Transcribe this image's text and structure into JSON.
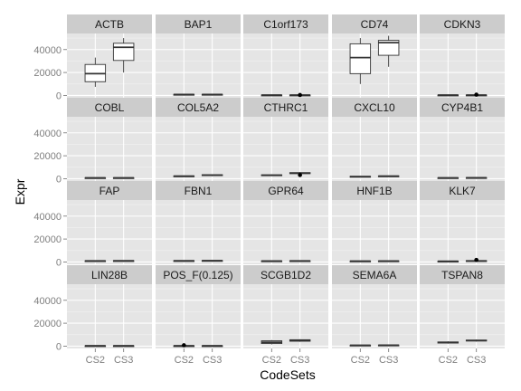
{
  "chart_data": {
    "type": "boxplot",
    "xlabel": "CodeSets",
    "ylabel": "Expr",
    "categories": [
      "CS2",
      "CS3"
    ],
    "ylim": [
      -2000,
      54000
    ],
    "yticks": [
      0,
      20000,
      40000
    ],
    "ytick_labels": [
      "0",
      "20000",
      "40000"
    ],
    "facet_layout": {
      "rows": 4,
      "cols": 5
    },
    "style": {
      "panel_bg": "#e5e5e5",
      "strip_bg": "#cccccc",
      "grid": "#ffffff",
      "box_line": "#333333",
      "box_fill": "#ffffff"
    },
    "facets": [
      {
        "name": "ACTB",
        "boxes": [
          {
            "category": "CS2",
            "min": 7500,
            "q1": 12000,
            "median": 19000,
            "q3": 27000,
            "max": 33000
          },
          {
            "category": "CS3",
            "min": 20000,
            "q1": 30500,
            "median": 42000,
            "q3": 45500,
            "max": 50000
          }
        ]
      },
      {
        "name": "BAP1",
        "boxes": [
          {
            "category": "CS2",
            "min": 400,
            "q1": 600,
            "median": 800,
            "q3": 1000,
            "max": 1200
          },
          {
            "category": "CS3",
            "min": 400,
            "q1": 600,
            "median": 800,
            "q3": 1000,
            "max": 1200
          }
        ]
      },
      {
        "name": "C1orf173",
        "boxes": [
          {
            "category": "CS2",
            "min": 100,
            "q1": 200,
            "median": 300,
            "q3": 400,
            "max": 500
          },
          {
            "category": "CS3",
            "min": 100,
            "q1": 200,
            "median": 300,
            "q3": 400,
            "max": 500,
            "outliers": [
              400
            ]
          }
        ]
      },
      {
        "name": "CD74",
        "boxes": [
          {
            "category": "CS2",
            "min": 10000,
            "q1": 19000,
            "median": 33000,
            "q3": 45000,
            "max": 50000
          },
          {
            "category": "CS3",
            "min": 25000,
            "q1": 35000,
            "median": 46000,
            "q3": 48000,
            "max": 52000
          }
        ]
      },
      {
        "name": "CDKN3",
        "boxes": [
          {
            "category": "CS2",
            "min": 100,
            "q1": 200,
            "median": 300,
            "q3": 400,
            "max": 500
          },
          {
            "category": "CS3",
            "min": 100,
            "q1": 200,
            "median": 300,
            "q3": 400,
            "max": 500,
            "outliers": [
              700
            ]
          }
        ]
      },
      {
        "name": "COBL",
        "boxes": [
          {
            "category": "CS2",
            "min": 300,
            "q1": 500,
            "median": 700,
            "q3": 900,
            "max": 1100
          },
          {
            "category": "CS3",
            "min": 300,
            "q1": 500,
            "median": 700,
            "q3": 900,
            "max": 1100
          }
        ]
      },
      {
        "name": "COL5A2",
        "boxes": [
          {
            "category": "CS2",
            "min": 1600,
            "q1": 1900,
            "median": 2200,
            "q3": 2500,
            "max": 2800
          },
          {
            "category": "CS3",
            "min": 2200,
            "q1": 2700,
            "median": 3100,
            "q3": 3500,
            "max": 3900
          }
        ]
      },
      {
        "name": "CTHRC1",
        "boxes": [
          {
            "category": "CS2",
            "min": 2300,
            "q1": 2700,
            "median": 3000,
            "q3": 3400,
            "max": 3800
          },
          {
            "category": "CS3",
            "min": 3800,
            "q1": 4400,
            "median": 4900,
            "q3": 5300,
            "max": 5800,
            "outliers": [
              3200
            ]
          }
        ]
      },
      {
        "name": "CXCL10",
        "boxes": [
          {
            "category": "CS2",
            "min": 1200,
            "q1": 1500,
            "median": 1800,
            "q3": 2100,
            "max": 2400
          },
          {
            "category": "CS3",
            "min": 1600,
            "q1": 1900,
            "median": 2200,
            "q3": 2500,
            "max": 2800
          }
        ]
      },
      {
        "name": "CYP4B1",
        "boxes": [
          {
            "category": "CS2",
            "min": 300,
            "q1": 500,
            "median": 700,
            "q3": 900,
            "max": 1100
          },
          {
            "category": "CS3",
            "min": 400,
            "q1": 600,
            "median": 800,
            "q3": 1000,
            "max": 1200
          }
        ]
      },
      {
        "name": "FAP",
        "boxes": [
          {
            "category": "CS2",
            "min": 500,
            "q1": 700,
            "median": 900,
            "q3": 1100,
            "max": 1300
          },
          {
            "category": "CS3",
            "min": 600,
            "q1": 800,
            "median": 1000,
            "q3": 1200,
            "max": 1400
          }
        ]
      },
      {
        "name": "FBN1",
        "boxes": [
          {
            "category": "CS2",
            "min": 600,
            "q1": 800,
            "median": 1000,
            "q3": 1200,
            "max": 1400
          },
          {
            "category": "CS3",
            "min": 700,
            "q1": 900,
            "median": 1100,
            "q3": 1300,
            "max": 1500
          }
        ]
      },
      {
        "name": "GPR64",
        "boxes": [
          {
            "category": "CS2",
            "min": 400,
            "q1": 600,
            "median": 800,
            "q3": 1000,
            "max": 1200
          },
          {
            "category": "CS3",
            "min": 500,
            "q1": 700,
            "median": 900,
            "q3": 1100,
            "max": 1300
          }
        ]
      },
      {
        "name": "HNF1B",
        "boxes": [
          {
            "category": "CS2",
            "min": 300,
            "q1": 500,
            "median": 700,
            "q3": 900,
            "max": 1100
          },
          {
            "category": "CS3",
            "min": 400,
            "q1": 600,
            "median": 800,
            "q3": 1000,
            "max": 1200
          }
        ]
      },
      {
        "name": "KLK7",
        "boxes": [
          {
            "category": "CS2",
            "min": 200,
            "q1": 400,
            "median": 600,
            "q3": 800,
            "max": 1000
          },
          {
            "category": "CS3",
            "min": 400,
            "q1": 600,
            "median": 900,
            "q3": 1200,
            "max": 1500,
            "outliers": [
              1800
            ]
          }
        ]
      },
      {
        "name": "LIN28B",
        "boxes": [
          {
            "category": "CS2",
            "min": 100,
            "q1": 200,
            "median": 300,
            "q3": 400,
            "max": 500
          },
          {
            "category": "CS3",
            "min": 100,
            "q1": 200,
            "median": 300,
            "q3": 400,
            "max": 500
          }
        ]
      },
      {
        "name": "POS_F(0.125)",
        "boxes": [
          {
            "category": "CS2",
            "min": 100,
            "q1": 200,
            "median": 300,
            "q3": 400,
            "max": 500,
            "outliers": [
              800
            ]
          },
          {
            "category": "CS3",
            "min": 100,
            "q1": 200,
            "median": 300,
            "q3": 400,
            "max": 500
          }
        ]
      },
      {
        "name": "SCGB1D2",
        "boxes": [
          {
            "category": "CS2",
            "min": 1500,
            "q1": 2300,
            "median": 3400,
            "q3": 4700,
            "max": 5300
          },
          {
            "category": "CS3",
            "min": 3800,
            "q1": 4300,
            "median": 5000,
            "q3": 5600,
            "max": 6000
          }
        ]
      },
      {
        "name": "SEMA6A",
        "boxes": [
          {
            "category": "CS2",
            "min": 300,
            "q1": 500,
            "median": 700,
            "q3": 900,
            "max": 1100
          },
          {
            "category": "CS3",
            "min": 400,
            "q1": 600,
            "median": 800,
            "q3": 1000,
            "max": 1200
          }
        ]
      },
      {
        "name": "TSPAN8",
        "boxes": [
          {
            "category": "CS2",
            "min": 2200,
            "q1": 2700,
            "median": 3200,
            "q3": 3700,
            "max": 4200
          },
          {
            "category": "CS3",
            "min": 4000,
            "q1": 4500,
            "median": 4900,
            "q3": 5300,
            "max": 5700
          }
        ]
      }
    ]
  }
}
